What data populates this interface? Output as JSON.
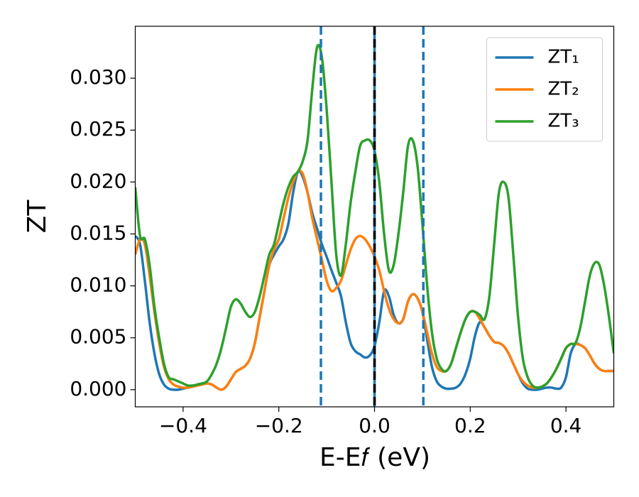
{
  "chart_data": {
    "type": "line",
    "xlabel": "E-E𝑓 (eV)",
    "ylabel": "ZT",
    "xlim": [
      -0.5,
      0.5
    ],
    "ylim": [
      -0.00165,
      0.035
    ],
    "xticks": [
      {
        "value": -0.4,
        "label": "−0.4"
      },
      {
        "value": -0.2,
        "label": "−0.2"
      },
      {
        "value": 0,
        "label": "0.0"
      },
      0.2,
      0.4
    ],
    "yticks": [
      {
        "value": 0,
        "label": "0.000"
      },
      {
        "value": 0.005,
        "label": "0.005"
      },
      {
        "value": 0.01,
        "label": "0.010"
      },
      {
        "value": 0.015,
        "label": "0.015"
      },
      {
        "value": 0.02,
        "label": "0.020"
      },
      {
        "value": 0.025,
        "label": "0.025"
      },
      {
        "value": 0.03,
        "label": "0.030"
      }
    ],
    "legend": "upper right",
    "x": [
      -0.5,
      -0.49,
      -0.48,
      -0.47,
      -0.46,
      -0.45,
      -0.44,
      -0.43,
      -0.42,
      -0.41,
      -0.4,
      -0.39,
      -0.38,
      -0.37,
      -0.36,
      -0.35,
      -0.34,
      -0.33,
      -0.32,
      -0.31,
      -0.3,
      -0.29,
      -0.28,
      -0.27,
      -0.26,
      -0.25,
      -0.24,
      -0.23,
      -0.22,
      -0.21,
      -0.2,
      -0.19,
      -0.18,
      -0.17,
      -0.16,
      -0.15,
      -0.14,
      -0.13,
      -0.12,
      -0.11,
      -0.1,
      -0.09,
      -0.08,
      -0.07,
      -0.06,
      -0.05,
      -0.04,
      -0.03,
      -0.02,
      -0.01,
      0,
      0.01,
      0.02,
      0.03,
      0.04,
      0.05,
      0.06,
      0.07,
      0.08,
      0.09,
      0.1,
      0.11,
      0.12,
      0.13,
      0.14,
      0.15,
      0.16,
      0.17,
      0.18,
      0.19,
      0.2,
      0.21,
      0.22,
      0.23,
      0.24,
      0.25,
      0.26,
      0.27,
      0.28,
      0.29,
      0.3,
      0.31,
      0.32,
      0.33,
      0.34,
      0.35,
      0.36,
      0.37,
      0.38,
      0.39,
      0.4,
      0.41,
      0.42,
      0.43,
      0.44,
      0.45,
      0.46,
      0.47,
      0.48,
      0.49,
      0.5
    ],
    "series": [
      {
        "name": "ZT₁",
        "color": "#1f77b4",
        "values": [
          0.0148,
          0.014,
          0.0105,
          0.0065,
          0.0035,
          0.0015,
          0.0005,
          0.0001,
          0,
          0,
          0.0001,
          0.0002,
          0.0003,
          0.0005,
          0.0006,
          0.0006,
          0.0005,
          0.0002,
          0,
          0.0003,
          0.001,
          0.0017,
          0.002,
          0.0023,
          0.003,
          0.0045,
          0.007,
          0.0095,
          0.012,
          0.013,
          0.0138,
          0.0145,
          0.016,
          0.019,
          0.021,
          0.0205,
          0.019,
          0.017,
          0.0155,
          0.014,
          0.0128,
          0.0115,
          0.0103,
          0.009,
          0.0065,
          0.0045,
          0.0037,
          0.0034,
          0.0031,
          0.0033,
          0.0042,
          0.0065,
          0.0095,
          0.009,
          0.0072,
          0.0064,
          0.0068,
          0.0085,
          0.0092,
          0.0088,
          0.0075,
          0.0048,
          0.0022,
          0.0008,
          0.0003,
          0.0001,
          0.0001,
          0.0002,
          0.0006,
          0.0015,
          0.003,
          0.0052,
          0.0065,
          0.006,
          0.0052,
          0.0046,
          0.0045,
          0.0042,
          0.0035,
          0.0025,
          0.0015,
          0.0006,
          0.0001,
          0,
          0,
          0.0001,
          0.0002,
          0.0002,
          0.0001,
          0.0002,
          0.0012,
          0.0035,
          0.0044,
          0.0043,
          0.004,
          0.0033,
          0.0025,
          0.002,
          0.0018,
          0.0018,
          0.0018
        ]
      },
      {
        "name": "ZT₂",
        "color": "#ff7f0e",
        "values": [
          0.013,
          0.0145,
          0.014,
          0.011,
          0.0075,
          0.0045,
          0.0022,
          0.001,
          0.0005,
          0.0003,
          0.0002,
          0.0002,
          0.0003,
          0.0004,
          0.0005,
          0.0006,
          0.0005,
          0.0002,
          0,
          0.0003,
          0.001,
          0.0017,
          0.002,
          0.0023,
          0.003,
          0.0045,
          0.007,
          0.0095,
          0.012,
          0.0135,
          0.0145,
          0.0165,
          0.0185,
          0.02,
          0.021,
          0.0208,
          0.019,
          0.0165,
          0.0145,
          0.0125,
          0.0105,
          0.0095,
          0.0098,
          0.0105,
          0.012,
          0.0135,
          0.0145,
          0.0148,
          0.0145,
          0.0138,
          0.0128,
          0.0115,
          0.0095,
          0.0078,
          0.0068,
          0.0064,
          0.0068,
          0.0085,
          0.0092,
          0.0088,
          0.0075,
          0.0055,
          0.0035,
          0.0022,
          0.0018,
          0.0018,
          0.0025,
          0.004,
          0.0055,
          0.0068,
          0.0075,
          0.0075,
          0.0068,
          0.006,
          0.0052,
          0.0046,
          0.0045,
          0.0042,
          0.0035,
          0.0025,
          0.0015,
          0.0008,
          0.0004,
          0.0002,
          0.0002,
          0.0003,
          0.0006,
          0.0012,
          0.002,
          0.003,
          0.004,
          0.0044,
          0.0044,
          0.0043,
          0.004,
          0.0033,
          0.0025,
          0.002,
          0.0018,
          0.0018,
          0.0018
        ]
      },
      {
        "name": "ZT₃",
        "color": "#2ca02c",
        "values": [
          0.0195,
          0.0148,
          0.0145,
          0.012,
          0.008,
          0.005,
          0.0025,
          0.0012,
          0.001,
          0.0008,
          0.0006,
          0.0004,
          0.0004,
          0.0005,
          0.0006,
          0.0008,
          0.0015,
          0.0025,
          0.004,
          0.006,
          0.008,
          0.0087,
          0.0083,
          0.0075,
          0.007,
          0.0075,
          0.009,
          0.011,
          0.013,
          0.014,
          0.016,
          0.018,
          0.0195,
          0.0205,
          0.021,
          0.022,
          0.024,
          0.029,
          0.033,
          0.032,
          0.027,
          0.02,
          0.013,
          0.011,
          0.014,
          0.018,
          0.021,
          0.0235,
          0.024,
          0.024,
          0.023,
          0.02,
          0.015,
          0.0115,
          0.012,
          0.015,
          0.019,
          0.0235,
          0.024,
          0.0215,
          0.016,
          0.01,
          0.0055,
          0.003,
          0.002,
          0.0018,
          0.0025,
          0.004,
          0.0055,
          0.0068,
          0.0075,
          0.0075,
          0.0072,
          0.0068,
          0.009,
          0.014,
          0.019,
          0.02,
          0.0185,
          0.013,
          0.007,
          0.003,
          0.0012,
          0.0004,
          0.0002,
          0.0003,
          0.0006,
          0.0012,
          0.002,
          0.003,
          0.004,
          0.0044,
          0.0045,
          0.006,
          0.0085,
          0.011,
          0.0122,
          0.012,
          0.01,
          0.007,
          0.0035
        ]
      }
    ],
    "vlines": [
      {
        "x": -0.112,
        "color": "#1f77b4",
        "style": "dashed"
      },
      {
        "x": 0,
        "color": "#1f77b4",
        "style": "solid"
      },
      {
        "x": 0,
        "color": "#000000",
        "style": "dashed"
      },
      {
        "x": 0.102,
        "color": "#1f77b4",
        "style": "dashed"
      }
    ]
  }
}
